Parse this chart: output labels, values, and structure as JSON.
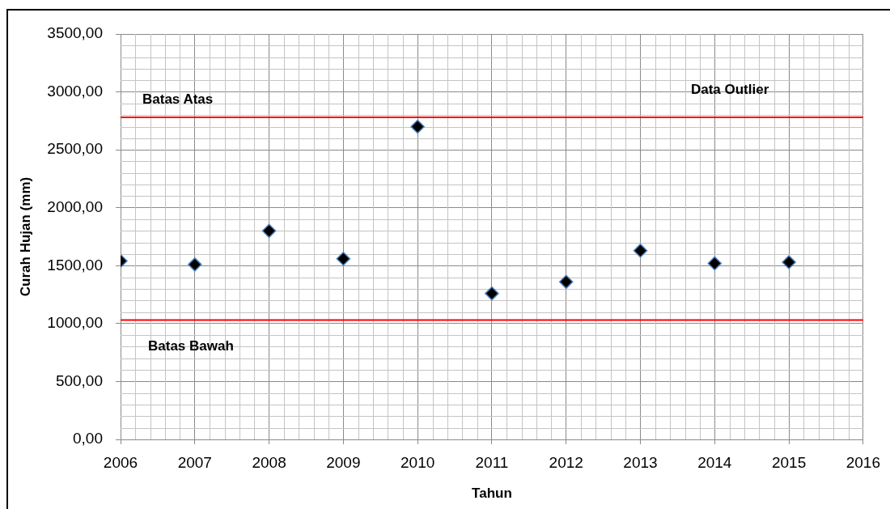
{
  "chart_data": {
    "type": "scatter",
    "xlabel": "Tahun",
    "ylabel": "Curah Hujan (mm)",
    "x": [
      2006,
      2007,
      2008,
      2009,
      2010,
      2011,
      2012,
      2013,
      2014,
      2015
    ],
    "series": [
      {
        "color": "#000000",
        "values": [
          1540,
          1510,
          1800,
          1560,
          2700,
          1260,
          1360,
          1630,
          1520,
          1530
        ]
      }
    ],
    "xlim": [
      2006,
      2016
    ],
    "xticks": [
      2006,
      2007,
      2008,
      2009,
      2010,
      2011,
      2012,
      2013,
      2014,
      2015,
      2016
    ],
    "ylim": [
      0,
      3500
    ],
    "yticks": [
      {
        "value": 0,
        "label": "0,00"
      },
      {
        "value": 500,
        "label": "500,00"
      },
      {
        "value": 1000,
        "label": "1000,00"
      },
      {
        "value": 1500,
        "label": "1500,00"
      },
      {
        "value": 2000,
        "label": "2000,00"
      },
      {
        "value": 2500,
        "label": "2500,00"
      },
      {
        "value": 3000,
        "label": "3000,00"
      },
      {
        "value": 3500,
        "label": "3500,00"
      }
    ],
    "grid": true,
    "marker": "diamond",
    "ref_lines": [
      {
        "axis": "y",
        "value": 2780,
        "label": "Batas Atas",
        "color": "#ff0000"
      },
      {
        "axis": "y",
        "value": 1030,
        "label": "Batas Bawah",
        "color": "#ff0000"
      }
    ],
    "annotations": [
      "Data Outlier"
    ]
  }
}
